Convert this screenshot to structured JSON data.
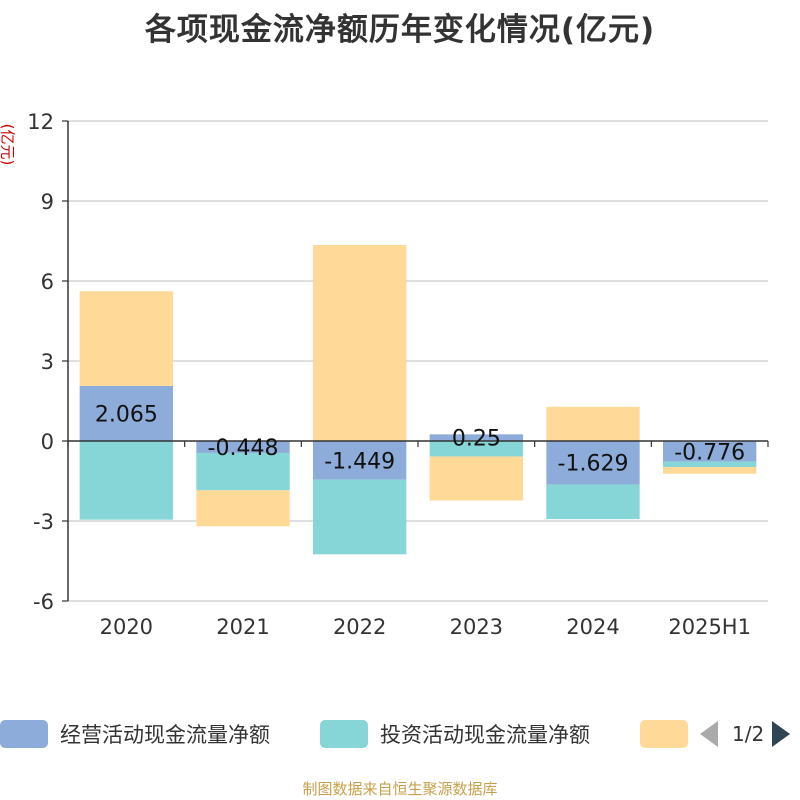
{
  "chart_data": {
    "type": "bar",
    "stacked": true,
    "title": "各项现金流净额历年变化情况(亿元)",
    "ylabel": "(亿元)",
    "categories": [
      "2020",
      "2021",
      "2022",
      "2023",
      "2024",
      "2025H1"
    ],
    "ylim": [
      -6,
      12
    ],
    "yticks": [
      -6,
      -3,
      0,
      3,
      6,
      9,
      12
    ],
    "grid": true,
    "legend_position": "bottom",
    "series": [
      {
        "name": "经营活动现金流量净额",
        "color": "#8eacd9",
        "values": [
          2.065,
          -0.448,
          -1.449,
          0.25,
          -1.629,
          -0.776
        ],
        "show_labels": true
      },
      {
        "name": "投资活动现金流量净额",
        "color": "#86d5d7",
        "values": [
          -2.95,
          -1.4,
          -2.8,
          -0.58,
          -1.3,
          -0.2
        ],
        "show_labels": false
      },
      {
        "name": "",
        "color": "#ffd998",
        "values": [
          3.55,
          -1.35,
          7.35,
          -1.65,
          1.28,
          -0.25
        ],
        "show_labels": false
      }
    ]
  },
  "legend": {
    "page_text": "1/2"
  },
  "source_text": "制图数据来自恒生聚源数据库"
}
